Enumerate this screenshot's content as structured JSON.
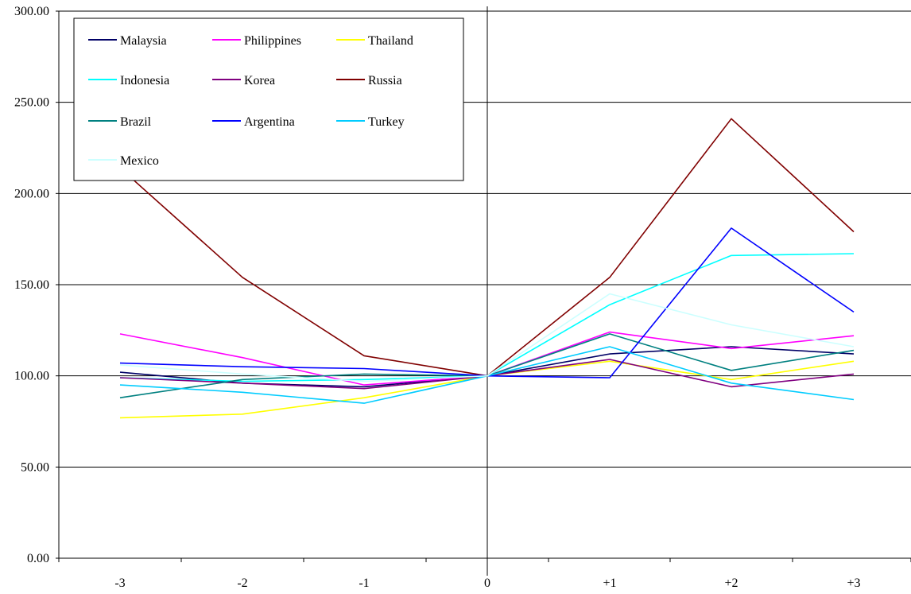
{
  "chart_data": {
    "type": "line",
    "categories": [
      "-3",
      "-2",
      "-1",
      "0",
      "+1",
      "+2",
      "+3"
    ],
    "ylim": [
      0,
      300
    ],
    "yticks": [
      "0.00",
      "50.00",
      "100.00",
      "150.00",
      "200.00",
      "250.00",
      "300.00"
    ],
    "grid": true,
    "legend_position": "top-left",
    "series": [
      {
        "name": "Malaysia",
        "color": "#000066",
        "values": [
          102,
          96,
          94,
          100,
          112,
          116,
          112
        ]
      },
      {
        "name": "Philippines",
        "color": "#ff00ff",
        "values": [
          123,
          110,
          95,
          100,
          124,
          115,
          122
        ]
      },
      {
        "name": "Thailand",
        "color": "#ffff00",
        "values": [
          77,
          79,
          88,
          100,
          108,
          98,
          108
        ]
      },
      {
        "name": "Indonesia",
        "color": "#00ffff",
        "values": [
          99,
          97,
          98,
          100,
          139,
          166,
          167
        ]
      },
      {
        "name": "Korea",
        "color": "#800080",
        "values": [
          99,
          96,
          93,
          100,
          109,
          94,
          101
        ]
      },
      {
        "name": "Russia",
        "color": "#800000",
        "values": [
          214,
          154,
          111,
          100,
          154,
          241,
          179
        ]
      },
      {
        "name": "Brazil",
        "color": "#008080",
        "values": [
          88,
          98,
          101,
          100,
          123,
          103,
          114
        ]
      },
      {
        "name": "Argentina",
        "color": "#0000ff",
        "values": [
          107,
          105,
          104,
          100,
          99,
          181,
          135
        ]
      },
      {
        "name": "Turkey",
        "color": "#00ccff",
        "values": [
          95,
          91,
          85,
          100,
          116,
          96,
          87
        ]
      },
      {
        "name": "Mexico",
        "color": "#ccffff",
        "values": [
          106,
          101,
          97,
          100,
          145,
          128,
          116
        ]
      }
    ]
  }
}
